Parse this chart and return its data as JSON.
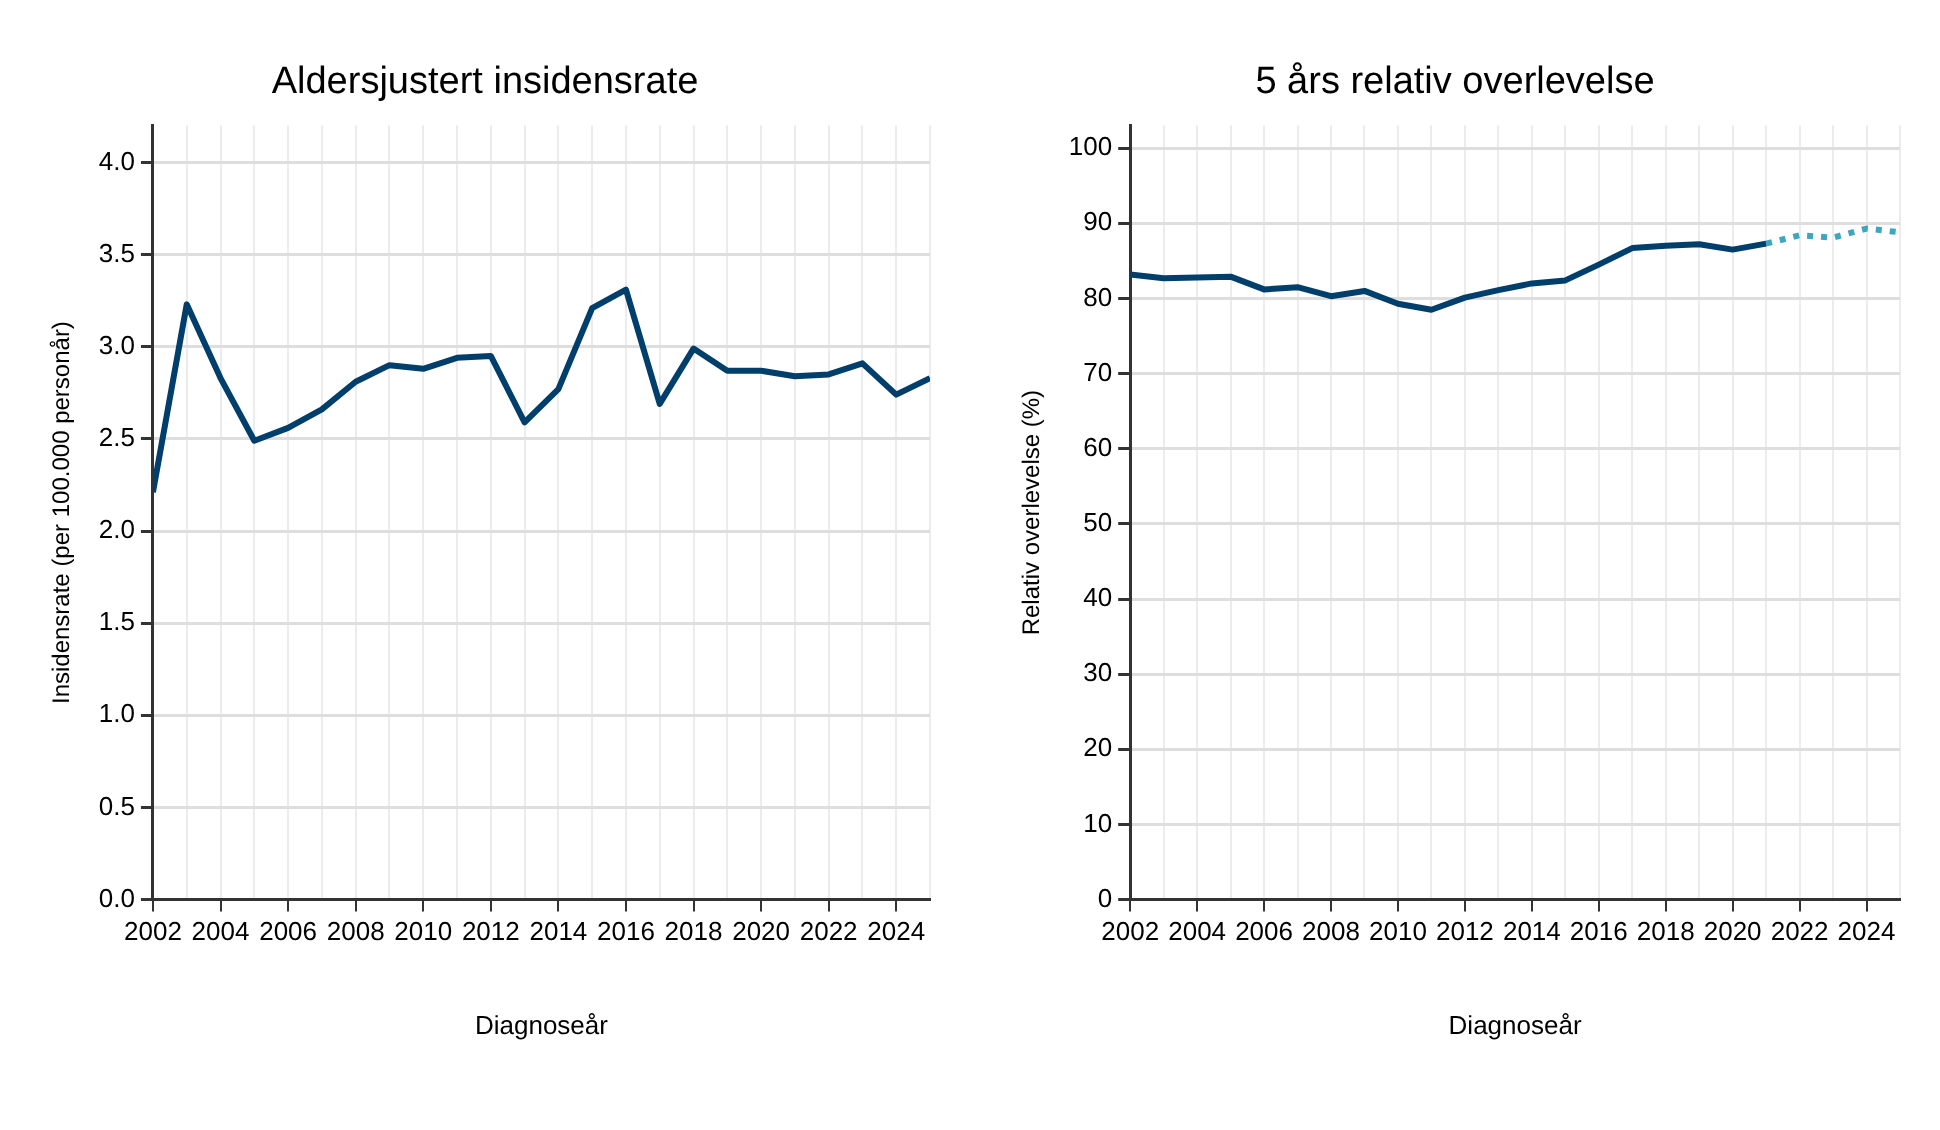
{
  "chart_data": [
    {
      "type": "line",
      "title": "Aldersjustert insidensrate",
      "xlabel": "Diagnoseår",
      "ylabel": "Insidensrate (per 100.000 personår)",
      "x": [
        2002,
        2003,
        2004,
        2005,
        2006,
        2007,
        2008,
        2009,
        2010,
        2011,
        2012,
        2013,
        2014,
        2015,
        2016,
        2017,
        2018,
        2019,
        2020,
        2021,
        2022,
        2023,
        2024,
        2025
      ],
      "series": [
        {
          "color": "#003f6b",
          "line_style": "solid",
          "values": [
            2.21,
            3.23,
            2.83,
            2.49,
            2.56,
            2.66,
            2.81,
            2.9,
            2.88,
            2.94,
            2.95,
            2.59,
            2.77,
            3.21,
            3.31,
            2.69,
            2.99,
            2.87,
            2.87,
            2.84,
            2.85,
            2.91,
            2.74,
            2.83
          ]
        }
      ],
      "xlim": [
        2002,
        2025
      ],
      "xticks": [
        2002,
        {
          "value": 2003,
          "label": null
        },
        2004,
        {
          "value": 2005,
          "label": null
        },
        2006,
        {
          "value": 2007,
          "label": null
        },
        2008,
        {
          "value": 2009,
          "label": null
        },
        2010,
        {
          "value": 2011,
          "label": null
        },
        2012,
        {
          "value": 2013,
          "label": null
        },
        2014,
        {
          "value": 2015,
          "label": null
        },
        2016,
        {
          "value": 2017,
          "label": null
        },
        2018,
        {
          "value": 2019,
          "label": null
        },
        2020,
        {
          "value": 2021,
          "label": null
        },
        2022,
        {
          "value": 2023,
          "label": null
        },
        2024,
        {
          "value": 2025,
          "label": null
        }
      ],
      "ylim": [
        0,
        4.2
      ],
      "yticks": [
        {
          "value": 0,
          "label": "0.0"
        },
        {
          "value": 0.5,
          "label": "0.5"
        },
        {
          "value": 1,
          "label": "1.0"
        },
        {
          "value": 1.5,
          "label": "1.5"
        },
        {
          "value": 2,
          "label": "2.0"
        },
        {
          "value": 2.5,
          "label": "2.5"
        },
        {
          "value": 3,
          "label": "3.0"
        },
        {
          "value": 3.5,
          "label": "3.5"
        },
        {
          "value": 4,
          "label": "4.0"
        }
      ],
      "grid": true,
      "legend": false,
      "marker": "none"
    },
    {
      "type": "line",
      "title": "5 års relativ overlevelse",
      "xlabel": "Diagnoseår",
      "ylabel": "Relativ overlevelse (%)",
      "x": [
        2002,
        2003,
        2004,
        2005,
        2006,
        2007,
        2008,
        2009,
        2010,
        2011,
        2012,
        2013,
        2014,
        2015,
        2016,
        2017,
        2018,
        2019,
        2020,
        2021
      ],
      "series": [
        {
          "color": "#003f6b",
          "line_style": "solid",
          "values": [
            83.2,
            82.7,
            82.8,
            82.9,
            81.2,
            81.5,
            80.3,
            81.0,
            79.3,
            78.5,
            80.1,
            81.1,
            82.0,
            82.4,
            84.5,
            86.7,
            87.0,
            87.2,
            86.5,
            87.3
          ]
        },
        {
          "color": "#3fa6bf",
          "line_style": "dotted",
          "x": [
            2021,
            2022,
            2023,
            2024,
            2025
          ],
          "values": [
            87.3,
            88.4,
            88.1,
            89.3,
            88.8
          ]
        }
      ],
      "xlim": [
        2002,
        2025
      ],
      "xticks": [
        2002,
        {
          "value": 2003,
          "label": null
        },
        2004,
        {
          "value": 2005,
          "label": null
        },
        2006,
        {
          "value": 2007,
          "label": null
        },
        2008,
        {
          "value": 2009,
          "label": null
        },
        2010,
        {
          "value": 2011,
          "label": null
        },
        2012,
        {
          "value": 2013,
          "label": null
        },
        2014,
        {
          "value": 2015,
          "label": null
        },
        2016,
        {
          "value": 2017,
          "label": null
        },
        2018,
        {
          "value": 2019,
          "label": null
        },
        2020,
        {
          "value": 2021,
          "label": null
        },
        2022,
        {
          "value": 2023,
          "label": null
        },
        2024,
        {
          "value": 2025,
          "label": null
        }
      ],
      "ylim": [
        0,
        103
      ],
      "yticks": [
        0,
        10,
        20,
        30,
        40,
        50,
        60,
        70,
        80,
        90,
        100
      ],
      "grid": true,
      "legend": false,
      "marker": "none"
    }
  ]
}
